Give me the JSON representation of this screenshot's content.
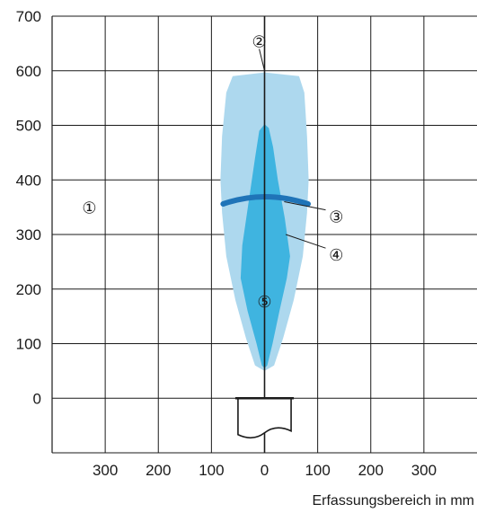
{
  "chart_data": {
    "type": "area",
    "xlabel": "Erfassungsbereich in mm",
    "ylabel": "",
    "xlim": [
      -400,
      400
    ],
    "ylim": [
      -100,
      700
    ],
    "x_ticks": [
      {
        "value": -300,
        "label": "300"
      },
      {
        "value": -200,
        "label": "200"
      },
      {
        "value": -100,
        "label": "100"
      },
      {
        "value": 0,
        "label": "0"
      },
      {
        "value": 100,
        "label": "100"
      },
      {
        "value": 200,
        "label": "200"
      },
      {
        "value": 300,
        "label": "300"
      }
    ],
    "y_ticks": [
      {
        "value": 0,
        "label": "0"
      },
      {
        "value": 100,
        "label": "100"
      },
      {
        "value": 200,
        "label": "200"
      },
      {
        "value": 300,
        "label": "300"
      },
      {
        "value": 400,
        "label": "400"
      },
      {
        "value": 500,
        "label": "500"
      },
      {
        "value": 600,
        "label": "600"
      },
      {
        "value": 700,
        "label": "700"
      }
    ],
    "grid": true,
    "colors": {
      "outer_zone": "#add8ee",
      "inner_zone": "#3fb4e0",
      "edge_line": "#1f74b8",
      "grid": "#1a1a1a"
    },
    "series": [
      {
        "kind": "outer",
        "points": [
          [
            0,
            597
          ],
          [
            -60,
            590
          ],
          [
            -72,
            560
          ],
          [
            -80,
            480
          ],
          [
            -83,
            400
          ],
          [
            -80,
            340
          ],
          [
            -72,
            260
          ],
          [
            -55,
            180
          ],
          [
            -35,
            110
          ],
          [
            -18,
            60
          ],
          [
            0,
            50
          ],
          [
            18,
            60
          ],
          [
            35,
            110
          ],
          [
            55,
            180
          ],
          [
            72,
            260
          ],
          [
            80,
            340
          ],
          [
            83,
            400
          ],
          [
            80,
            480
          ],
          [
            75,
            560
          ],
          [
            65,
            590
          ]
        ]
      },
      {
        "kind": "inner",
        "points": [
          [
            0,
            502
          ],
          [
            -10,
            490
          ],
          [
            -18,
            440
          ],
          [
            -30,
            360
          ],
          [
            -42,
            280
          ],
          [
            -45,
            220
          ],
          [
            -32,
            160
          ],
          [
            -15,
            100
          ],
          [
            -5,
            60
          ],
          [
            0,
            55
          ],
          [
            5,
            60
          ],
          [
            15,
            100
          ],
          [
            28,
            160
          ],
          [
            42,
            220
          ],
          [
            48,
            260
          ],
          [
            38,
            330
          ],
          [
            25,
            400
          ],
          [
            16,
            460
          ],
          [
            8,
            495
          ]
        ]
      },
      {
        "kind": "edge",
        "points": [
          [
            -78,
            356
          ],
          [
            -40,
            364
          ],
          [
            0,
            366
          ],
          [
            40,
            364
          ],
          [
            82,
            356
          ]
        ]
      }
    ],
    "callouts": [
      {
        "label": "②",
        "x": -10,
        "y": 655,
        "leader": [
          [
            -10,
            640
          ],
          [
            0,
            600
          ]
        ]
      },
      {
        "label": "①",
        "x": -330,
        "y": 350
      },
      {
        "label": "③",
        "x": 135,
        "y": 334,
        "leader": [
          [
            37,
            360
          ],
          [
            115,
            345
          ]
        ]
      },
      {
        "label": "④",
        "x": 135,
        "y": 264,
        "leader": [
          [
            40,
            300
          ],
          [
            115,
            275
          ]
        ]
      },
      {
        "label": "⑤",
        "x": 0,
        "y": 178
      }
    ],
    "sensor": {
      "x_left": -50,
      "x_right": 50,
      "y_top": 0,
      "y_bottom": -70
    }
  }
}
